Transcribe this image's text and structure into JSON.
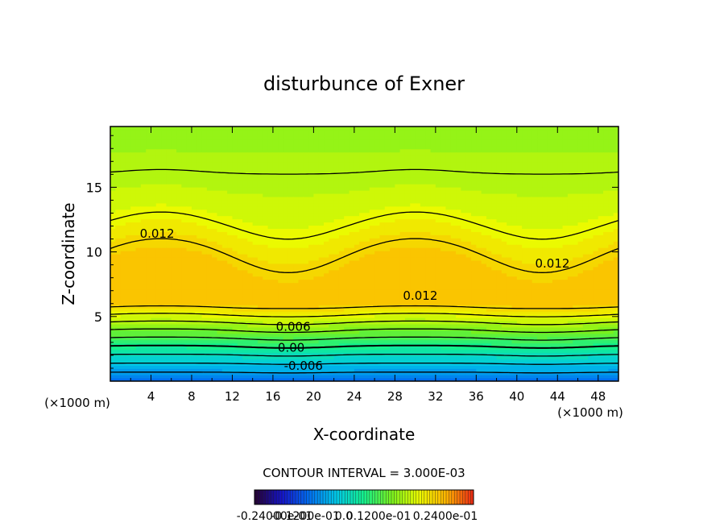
{
  "chart_data": {
    "type": "contour",
    "title": "disturbunce of Exner",
    "xlabel": "X-coordinate",
    "ylabel": "Z-coordinate",
    "x_unit_left": "(×1000 m)",
    "x_unit_right": "(×1000 m)",
    "xlim": [
      0,
      50
    ],
    "ylim": [
      0,
      19.7
    ],
    "x_ticks": [
      "4",
      "8",
      "12",
      "16",
      "20",
      "24",
      "28",
      "32",
      "36",
      "40",
      "44",
      "48"
    ],
    "y_ticks": [
      "5",
      "10",
      "15"
    ],
    "contour_interval_label": "CONTOUR INTERVAL = 3.000E-03",
    "contour_interval": 0.003,
    "contour_labels": [
      {
        "text": "0.012",
        "x": 4.6,
        "z": 11.4
      },
      {
        "text": "0.012",
        "x": 30.5,
        "z": 6.6
      },
      {
        "text": "0.012",
        "x": 43.5,
        "z": 9.1
      },
      {
        "text": "0.006",
        "x": 18.0,
        "z": 4.2
      },
      {
        "text": "0.00",
        "x": 17.8,
        "z": 2.6
      },
      {
        "text": "-0.006",
        "x": 19.0,
        "z": 1.2
      }
    ],
    "colorbar_labels": {
      "min": "-0.24000e-01",
      "mid1": "-0.1200e-01",
      "zero": "0.0",
      "mid2": "0.1200e-01",
      "max": "0.2400e-01"
    },
    "colorbar_range": [
      -0.024,
      0.024
    ],
    "colors": {
      "background": "#ffffff",
      "field_high": "#f8d400",
      "field_mid": "#e6f800",
      "field_low": "#18f2b8",
      "contour_line": "#000000"
    }
  }
}
